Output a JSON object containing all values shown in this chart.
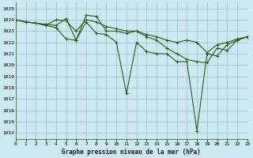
{
  "title": "Graphe pression niveau de la mer (hPa)",
  "bg_color": "#cce8f0",
  "grid_color": "#9bbfcc",
  "line_color": "#2d5a1b",
  "xlim": [
    0,
    23
  ],
  "ylim": [
    1013.5,
    1025.5
  ],
  "xtick_labels": [
    "0",
    "1",
    "2",
    "3",
    "4",
    "5",
    "6",
    "7",
    "8",
    "9",
    "10",
    "11",
    "12",
    "13",
    "14",
    "15",
    "16",
    "17",
    "18",
    "19",
    "20",
    "21",
    "22",
    "23"
  ],
  "yticks": [
    1014,
    1015,
    1016,
    1017,
    1018,
    1019,
    1020,
    1021,
    1022,
    1023,
    1024,
    1025
  ],
  "series": [
    [
      1024.0,
      1023.8,
      1023.7,
      1023.6,
      1023.5,
      1024.1,
      1022.2,
      1024.4,
      1024.3,
      1023.0,
      1023.0,
      1022.8,
      1023.0,
      1022.7,
      1022.5,
      1022.2,
      1022.0,
      1022.2,
      1022.0,
      1021.1,
      1021.8,
      1022.0,
      1022.3,
      1022.5
    ],
    [
      1024.0,
      1023.8,
      1023.7,
      1023.5,
      1024.0,
      1023.9,
      1023.0,
      1024.0,
      1023.8,
      1023.4,
      1023.2,
      1023.0,
      1023.0,
      1022.5,
      1022.2,
      1021.5,
      1021.0,
      1020.5,
      1020.3,
      1020.2,
      1021.5,
      1021.3,
      1022.2,
      1022.5
    ],
    [
      1024.0,
      1023.8,
      1023.7,
      1023.5,
      1023.3,
      1022.3,
      1022.2,
      1023.8,
      1022.8,
      1022.7,
      1022.0,
      1017.5,
      1022.0,
      1021.2,
      1021.0,
      1021.0,
      1020.3,
      1020.3,
      1014.2,
      1021.0,
      1020.8,
      1021.8,
      1022.2,
      1022.5
    ]
  ],
  "marker": "+",
  "markersize": 3,
  "linewidth": 0.8
}
